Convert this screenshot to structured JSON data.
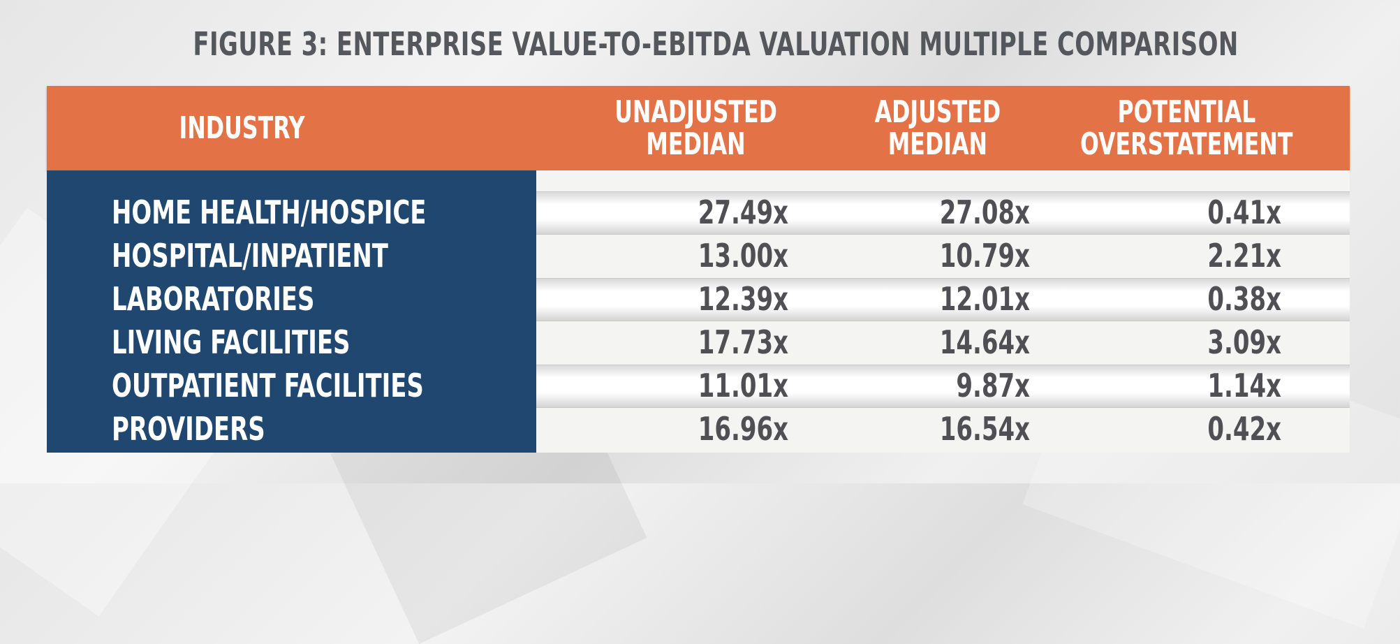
{
  "title": "FIGURE 3: ENTERPRISE VALUE-TO-EBITDA VALUATION MULTIPLE COMPARISON",
  "colors": {
    "header": "#e37347",
    "industry_column": "#20476f",
    "header_text": "#ffffff",
    "value_text": "#4f4f54"
  },
  "chart_data": {
    "type": "table",
    "title": "FIGURE 3: ENTERPRISE VALUE-TO-EBITDA VALUATION MULTIPLE COMPARISON",
    "columns": [
      "INDUSTRY",
      "UNADJUSTED\nMEDIAN",
      "ADJUSTED\nMEDIAN",
      "POTENTIAL\nOVERSTATEMENT"
    ],
    "rows": [
      {
        "industry": "HOME HEALTH/HOSPICE",
        "unadjusted": "27.49x",
        "adjusted": "27.08x",
        "overstatement": "0.41x"
      },
      {
        "industry": "HOSPITAL/INPATIENT",
        "unadjusted": "13.00x",
        "adjusted": "10.79x",
        "overstatement": "2.21x"
      },
      {
        "industry": "LABORATORIES",
        "unadjusted": "12.39x",
        "adjusted": "12.01x",
        "overstatement": "0.38x"
      },
      {
        "industry": "LIVING FACILITIES",
        "unadjusted": "17.73x",
        "adjusted": "14.64x",
        "overstatement": "3.09x"
      },
      {
        "industry": "OUTPATIENT FACILITIES",
        "unadjusted": "11.01x",
        "adjusted": "9.87x",
        "overstatement": "1.14x"
      },
      {
        "industry": "PROVIDERS",
        "unadjusted": "16.96x",
        "adjusted": "16.54x",
        "overstatement": "0.42x"
      }
    ]
  }
}
